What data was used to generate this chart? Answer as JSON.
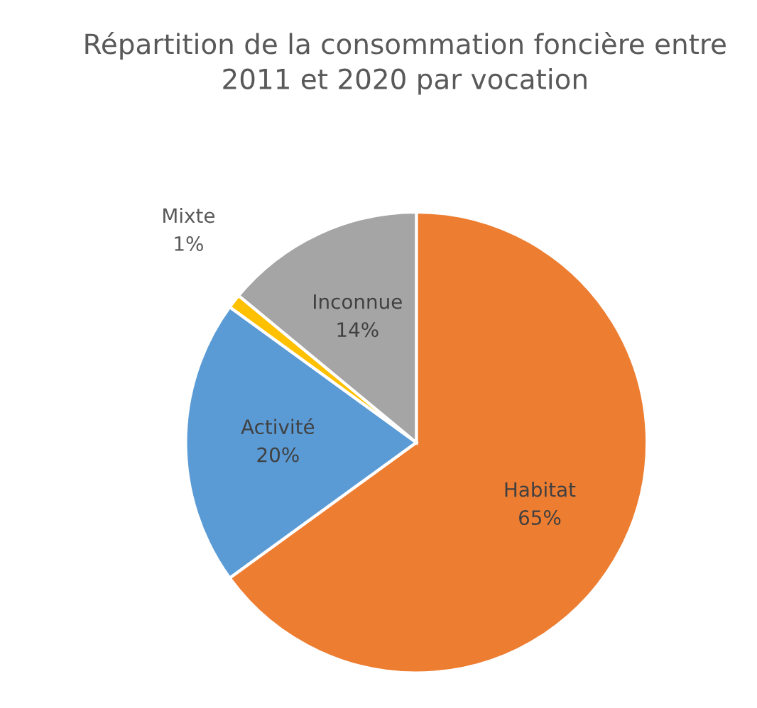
{
  "chart_data": {
    "type": "pie",
    "title": "Répartition de la consommation foncière entre 2011 et 2020 par vocation",
    "categories": [
      "Habitat",
      "Activité",
      "Mixte",
      "Inconnue"
    ],
    "values": [
      65,
      20,
      1,
      14
    ],
    "value_labels": [
      "65%",
      "20%",
      "1%",
      "14%"
    ],
    "colors": [
      "#ed7d31",
      "#5b9bd5",
      "#ffc000",
      "#a5a5a5"
    ],
    "legend": false
  }
}
